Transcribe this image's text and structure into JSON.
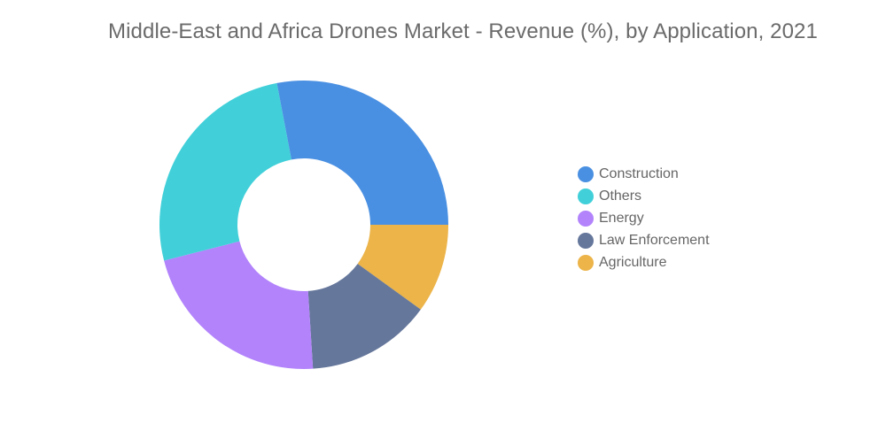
{
  "chart_data": {
    "type": "pie",
    "variant": "donut",
    "title": "Middle-East and Africa Drones Market - Revenue (%), by Application, 2021",
    "categories": [
      "Construction",
      "Others",
      "Energy",
      "Law Enforcement",
      "Agriculture"
    ],
    "values": [
      28,
      26,
      22,
      14,
      10
    ],
    "unit": "%",
    "colors": [
      "#4a90e2",
      "#41d0d9",
      "#b283fb",
      "#65779b",
      "#ecb449"
    ],
    "legend_position": "right",
    "slice_order_note": "drawn clockwise starting at 3 o'clock: Agriculture, Law Enforcement, Energy, Others, Construction"
  }
}
